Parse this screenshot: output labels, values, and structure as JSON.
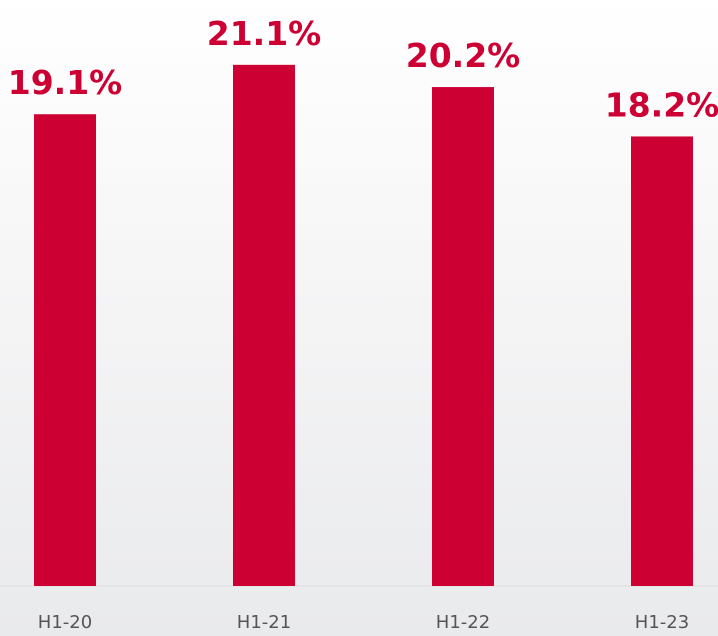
{
  "chart_data": {
    "type": "bar",
    "categories": [
      "H1-20",
      "H1-21",
      "H1-22",
      "H1-23"
    ],
    "values": [
      19.1,
      21.1,
      20.2,
      18.2
    ],
    "value_labels": [
      "19.1%",
      "21.1%",
      "20.2%",
      "18.2%"
    ],
    "color": "#cc0033"
  }
}
